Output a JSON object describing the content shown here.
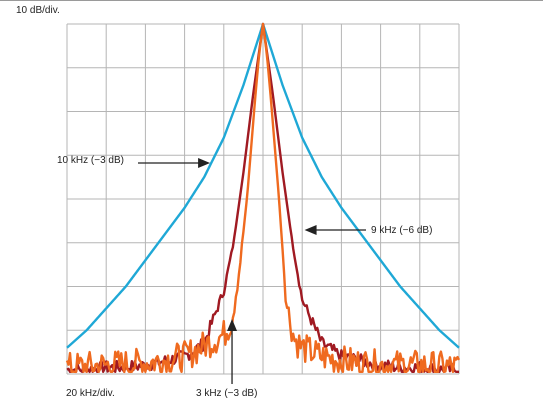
{
  "chart_data": {
    "type": "line",
    "y_division_label": "10 dB/div.",
    "x_division_label": "20 kHz/div.",
    "x_divisions": 10,
    "y_divisions": 8,
    "grid": true,
    "series": [
      {
        "color": "#1fa8d6",
        "x_div": [
          -5,
          -4.5,
          -4,
          -3.5,
          -3,
          -2.5,
          -2,
          -1.5,
          -1,
          -0.5,
          0,
          0.5,
          1,
          1.5,
          2,
          2.5,
          3,
          3.5,
          4,
          4.5,
          5
        ],
        "y_div": [
          -7.4,
          -7.0,
          -6.5,
          -6.0,
          -5.4,
          -4.8,
          -4.2,
          -3.5,
          -2.6,
          -1.4,
          0,
          -1.4,
          -2.6,
          -3.5,
          -4.2,
          -4.8,
          -5.4,
          -6.0,
          -6.5,
          -7.0,
          -7.4
        ]
      },
      {
        "color": "#a01a22",
        "x_div": [
          -5,
          -4.5,
          -4,
          -3.5,
          -3,
          -2.5,
          -2,
          -1.5,
          -1,
          -0.75,
          -0.5,
          -0.25,
          0,
          0.25,
          0.5,
          0.75,
          1,
          1.5,
          2,
          2.5,
          3,
          3.5,
          4,
          4.5,
          5
        ],
        "y_div": [
          -7.9,
          -7.9,
          -7.85,
          -7.85,
          -7.8,
          -7.7,
          -7.6,
          -7.3,
          -6.1,
          -5.0,
          -3.4,
          -1.6,
          0,
          -1.6,
          -3.4,
          -5.0,
          -6.3,
          -7.3,
          -7.6,
          -7.7,
          -7.8,
          -7.85,
          -7.85,
          -7.9,
          -7.9
        ],
        "noise": 0.15
      },
      {
        "color": "#ef6a1f",
        "x_div": [
          -5,
          -4,
          -3,
          -2,
          -1.5,
          -1,
          -0.8,
          -0.6,
          -0.4,
          -0.3,
          -0.2,
          -0.1,
          0,
          0.1,
          0.2,
          0.3,
          0.4,
          0.6,
          0.8,
          1,
          1.5,
          2,
          3,
          4,
          5
        ],
        "y_div": [
          -7.85,
          -7.8,
          -7.75,
          -7.6,
          -7.35,
          -7.1,
          -6.8,
          -5.6,
          -3.9,
          -2.8,
          -1.7,
          -0.7,
          0,
          -0.7,
          -1.7,
          -2.8,
          -3.9,
          -6.4,
          -7.2,
          -7.4,
          -7.6,
          -7.7,
          -7.8,
          -7.8,
          -7.85
        ],
        "noise": 0.35
      }
    ],
    "annotations": [
      {
        "text": "10 kHz (−3 dB)",
        "arrow_direction": "right",
        "text_x": 0.02,
        "y_pos": 0.5,
        "target_x": -1.35
      },
      {
        "text": "9 kHz (−6 dB)",
        "arrow_direction": "left",
        "text_x": 0.775,
        "y_pos": 0.5,
        "target_x": 1.06
      },
      {
        "text": "3 kHz (−3 dB)",
        "arrow_direction": "up",
        "text_x": 0.42,
        "y_pos": 0.36,
        "target_x": -0.79
      }
    ]
  }
}
